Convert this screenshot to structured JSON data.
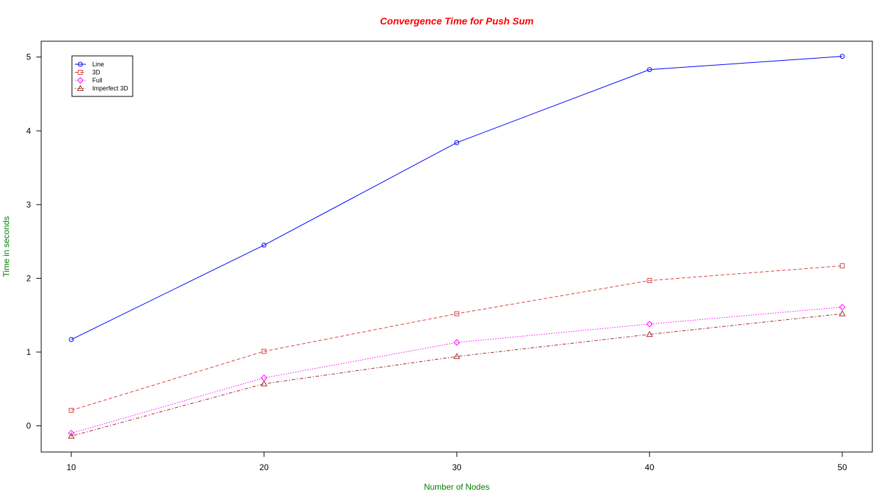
{
  "chart_data": {
    "type": "line",
    "title": "Convergence Time for Push Sum",
    "xlabel": "Number of Nodes",
    "ylabel": "Time in seconds",
    "x": [
      10,
      20,
      30,
      40,
      50
    ],
    "xticks": [
      "10",
      "20",
      "30",
      "40",
      "50"
    ],
    "yticks": [
      "0",
      "1",
      "2",
      "3",
      "4",
      "5"
    ],
    "xlim": [
      8.44,
      51.56
    ],
    "ylim": [
      -0.355,
      5.215
    ],
    "grid": false,
    "legend_position": "top-left",
    "series": [
      {
        "name": "Line",
        "color": "#0000ff",
        "marker": "circle",
        "dash": "solid",
        "values": [
          1.17,
          2.45,
          3.84,
          4.83,
          5.01
        ]
      },
      {
        "name": "3D",
        "color": "#df3e3e",
        "marker": "square",
        "dash": "dashed",
        "values": [
          0.21,
          1.01,
          1.52,
          1.97,
          2.17
        ]
      },
      {
        "name": "Full",
        "color": "#ff00ff",
        "marker": "diamond",
        "dash": "dotted",
        "values": [
          -0.1,
          0.65,
          1.13,
          1.38,
          1.61
        ]
      },
      {
        "name": "Imperfect 3D",
        "color": "#a52a2a",
        "marker": "triangle",
        "dash": "dotdash",
        "values": [
          -0.14,
          0.57,
          0.94,
          1.24,
          1.52
        ]
      }
    ],
    "colors": {
      "title": "#ff0000",
      "axis_titles": "#008000"
    }
  }
}
